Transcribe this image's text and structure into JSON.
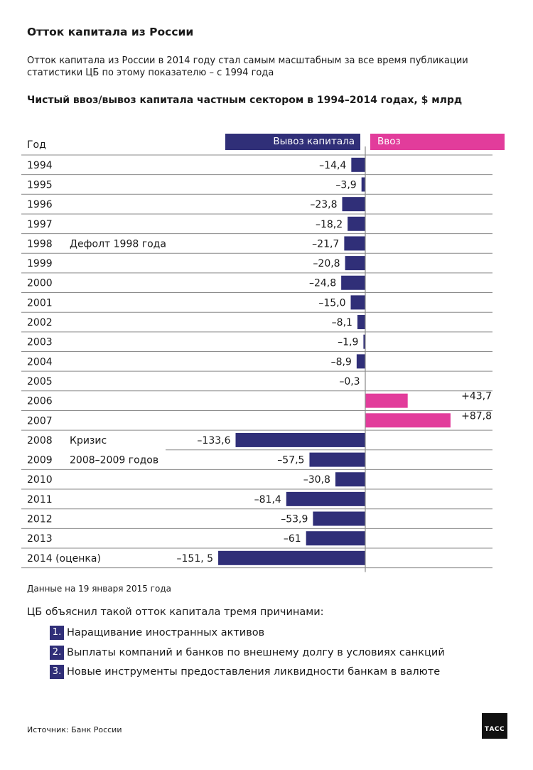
{
  "title": "Отток капитала из России",
  "subtitle_lines": [
    "Отток капитала из России в 2014 году стал самым масштабным за все время публикации",
    "статистики ЦБ по этому показателю – с 1994 года"
  ],
  "chart_heading": "Чистый ввоз/вывоз капитала частным сектором в 1994–2014 годах, $ млрд",
  "chart_data": {
    "type": "bar",
    "orientation": "horizontal",
    "title": "Чистый ввоз/вывоз капитала частным сектором в 1994–2014 годах, $ млрд",
    "category_header": "Год",
    "legend": [
      {
        "name": "Вывоз капитала",
        "color": "#302f78"
      },
      {
        "name": "Ввоз",
        "color": "#e23c9b"
      }
    ],
    "categories": [
      "1994",
      "1995",
      "1996",
      "1997",
      "1998",
      "1999",
      "2000",
      "2001",
      "2002",
      "2003",
      "2004",
      "2005",
      "2006",
      "2007",
      "2008",
      "2009",
      "2010",
      "2011",
      "2012",
      "2013",
      "2014 (оценка)"
    ],
    "values": [
      -14.4,
      -3.9,
      -23.8,
      -18.2,
      -21.7,
      -20.8,
      -24.8,
      -15.0,
      -8.1,
      -1.9,
      -8.9,
      -0.3,
      43.7,
      87.8,
      -133.6,
      -57.5,
      -30.8,
      -81.4,
      -53.9,
      -61,
      -151.5
    ],
    "value_labels": [
      "–14,4",
      "–3,9",
      "–23,8",
      "–18,2",
      "–21,7",
      "–20,8",
      "–24,8",
      "–15,0",
      "–8,1",
      "–1,9",
      "–8,9",
      "–0,3",
      "+43,7",
      "+87,8",
      "–133,6",
      "–57,5",
      "–30,8",
      "–81,4",
      "–53,9",
      "–61",
      "–151, 5"
    ],
    "annotations": [
      {
        "row": 4,
        "text": "Дефолт 1998 года"
      },
      {
        "row": 14,
        "text": "Кризис"
      },
      {
        "row": 15,
        "text": "2008–2009 годов"
      }
    ],
    "colors": {
      "outflow": "#302f78",
      "inflow": "#e23c9b"
    }
  },
  "note": "Данные на 19 января 2015 года",
  "reasons_intro": "ЦБ объяснил такой отток капитала тремя причинами:",
  "reasons": [
    {
      "num": "1.",
      "text": "Наращивание иностранных активов"
    },
    {
      "num": "2.",
      "text": "Выплаты компаний и банков по внешнему долгу в условиях санкций"
    },
    {
      "num": "3.",
      "text": "Новые инструменты предоставления ликвидности банкам в валюте"
    }
  ],
  "source": "Источник: Банк России",
  "logo_text": "ТАСС"
}
